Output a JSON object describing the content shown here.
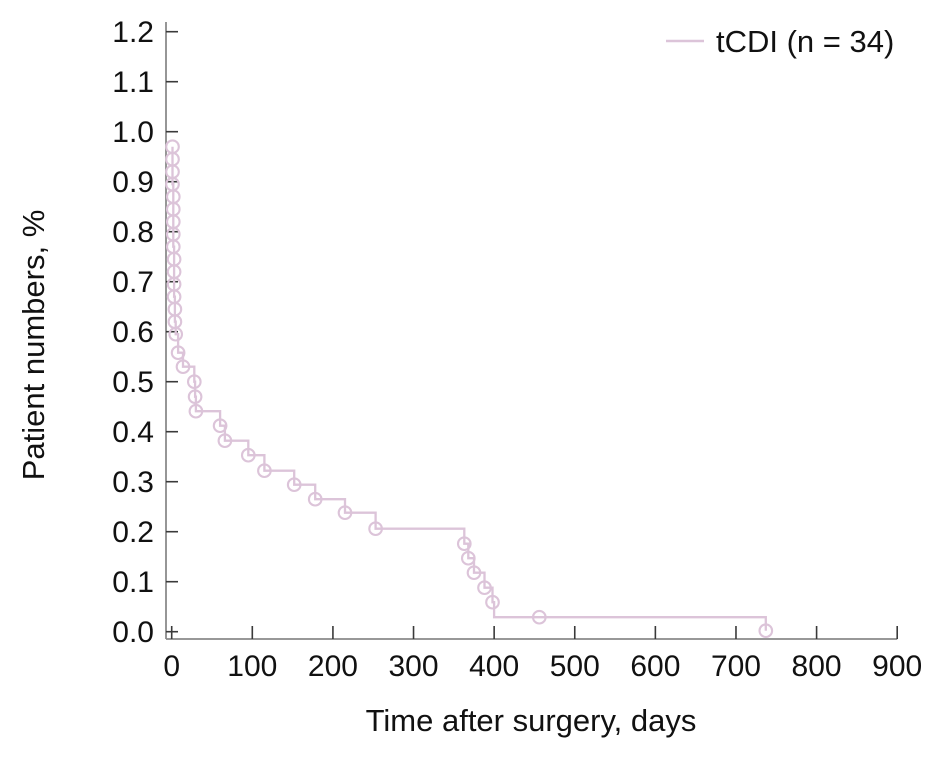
{
  "chart_data": {
    "type": "line",
    "subtype": "kaplan-meier-step-curve",
    "title": "",
    "xlabel": "Time after surgery, days",
    "ylabel": "Patient numbers, %",
    "xlim": [
      0,
      900
    ],
    "ylim": [
      0,
      1.2
    ],
    "xticks": [
      0,
      100,
      200,
      300,
      400,
      500,
      600,
      700,
      800,
      900
    ],
    "yticks": [
      0.0,
      0.1,
      0.2,
      0.3,
      0.4,
      0.5,
      0.6,
      0.7,
      0.8,
      0.9,
      1.0,
      1.1,
      1.2
    ],
    "grid": false,
    "legend_position": "top-right",
    "axis_color": "#8a8a8a",
    "tick_color": "#3a3a3a",
    "text_color": "#111111",
    "series": [
      {
        "name": "tCDI (n = 34)",
        "color": "#dcc4d9",
        "marker": "open-circle",
        "step": true,
        "points": [
          [
            1,
            0.97
          ],
          [
            1,
            0.945
          ],
          [
            1,
            0.92
          ],
          [
            1,
            0.895
          ],
          [
            2,
            0.87
          ],
          [
            2,
            0.845
          ],
          [
            2,
            0.82
          ],
          [
            2,
            0.795
          ],
          [
            2,
            0.77
          ],
          [
            3,
            0.745
          ],
          [
            3,
            0.72
          ],
          [
            3,
            0.695
          ],
          [
            3,
            0.67
          ],
          [
            4,
            0.645
          ],
          [
            4,
            0.62
          ],
          [
            5,
            0.595
          ],
          [
            8,
            0.558
          ],
          [
            14,
            0.53
          ],
          [
            28,
            0.5
          ],
          [
            29,
            0.47
          ],
          [
            30,
            0.441
          ],
          [
            60,
            0.412
          ],
          [
            66,
            0.382
          ],
          [
            95,
            0.353
          ],
          [
            115,
            0.322
          ],
          [
            152,
            0.294
          ],
          [
            178,
            0.265
          ],
          [
            215,
            0.238
          ],
          [
            253,
            0.206
          ],
          [
            363,
            0.176
          ],
          [
            368,
            0.147
          ],
          [
            375,
            0.118
          ],
          [
            388,
            0.088
          ],
          [
            398,
            0.059
          ],
          [
            400,
            0.029,
            0
          ],
          [
            456,
            0.029
          ],
          [
            737,
            0.002
          ]
        ]
      }
    ]
  }
}
